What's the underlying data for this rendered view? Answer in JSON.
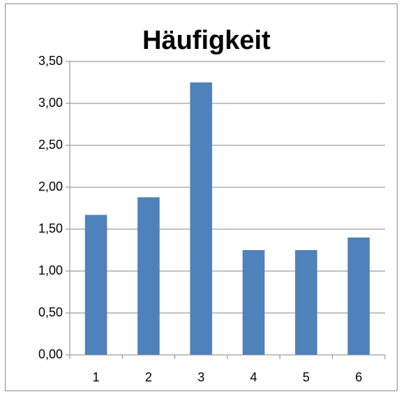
{
  "chart_data": {
    "type": "bar",
    "title": "Häufigkeit",
    "categories": [
      "1",
      "2",
      "3",
      "4",
      "5",
      "6"
    ],
    "values": [
      1.67,
      1.88,
      3.25,
      1.25,
      1.25,
      1.4
    ],
    "color": "#4f81bd",
    "ylim": [
      0,
      3.5
    ],
    "yticks": [
      {
        "value": 0,
        "label": "0,00"
      },
      {
        "value": 0.5,
        "label": "0,50"
      },
      {
        "value": 1,
        "label": "1,00"
      },
      {
        "value": 1.5,
        "label": "1,50"
      },
      {
        "value": 2,
        "label": "2,00"
      },
      {
        "value": 2.5,
        "label": "2,50"
      },
      {
        "value": 3,
        "label": "3,00"
      },
      {
        "value": 3.5,
        "label": "3,50"
      }
    ],
    "grid": true
  }
}
